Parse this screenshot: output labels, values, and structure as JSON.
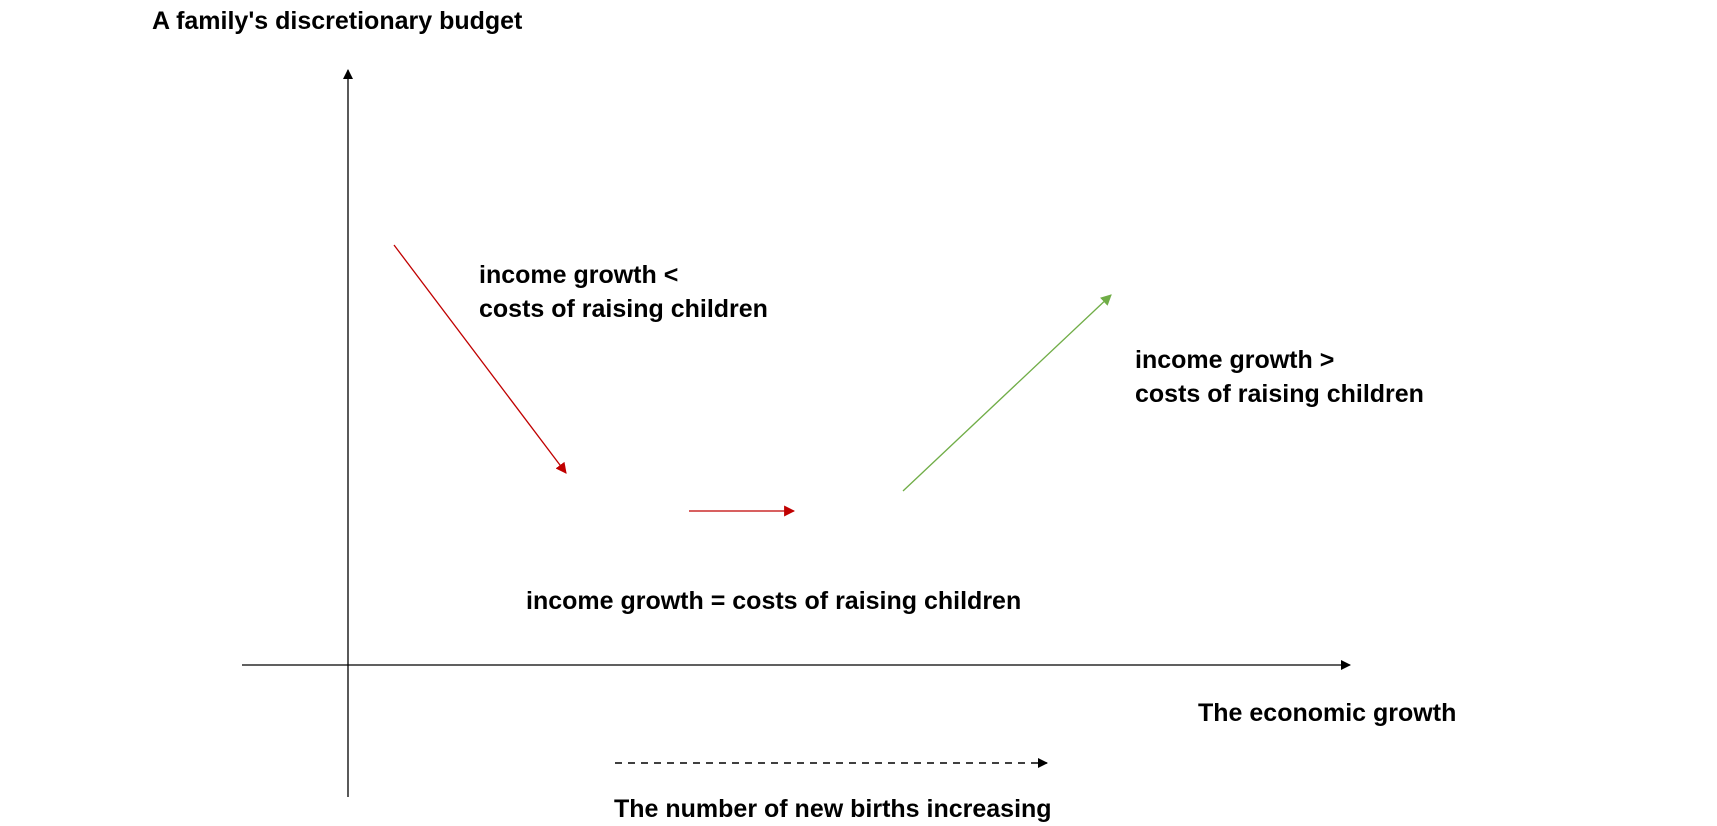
{
  "diagram": {
    "y_axis_label": "A family's discretionary budget",
    "x_axis_label": "The economic growth",
    "births_label": "The number of new births increasing",
    "phases": {
      "decline": {
        "line1": "income growth <",
        "line2": "costs of raising children",
        "color": "#C00000"
      },
      "flat": {
        "label": "income growth = costs of raising children",
        "color": "#C00000"
      },
      "rise": {
        "line1": "income growth >",
        "line2": "costs of raising children",
        "color": "#70AD47"
      }
    },
    "axis_color": "#000000"
  }
}
